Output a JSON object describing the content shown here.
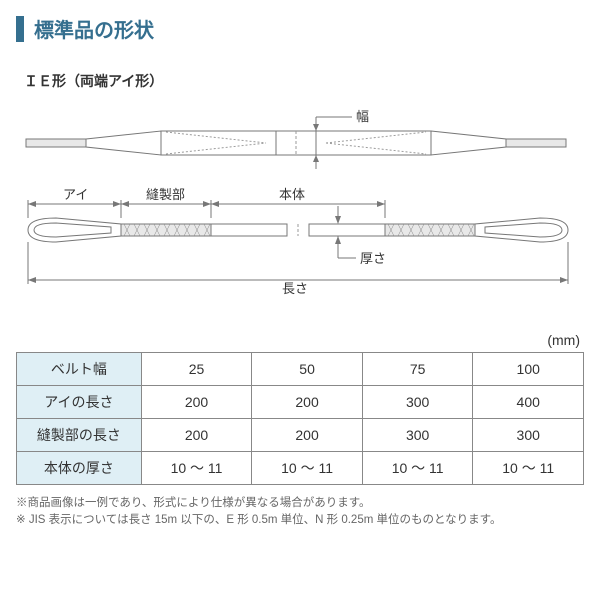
{
  "title": "標準品の形状",
  "subtitle": "ＩＥ形（両端アイ形）",
  "unit_label": "(mm)",
  "colors": {
    "accent": "#356f8f",
    "table_header_bg": "#dfeff5",
    "table_border": "#888888",
    "diagram_stroke": "#777777",
    "diagram_shade": "#e8e8e8",
    "text_dark": "#333333",
    "note_text": "#666666"
  },
  "diagram": {
    "labels": {
      "width": "幅",
      "eye": "アイ",
      "sewn": "縫製部",
      "body": "本体",
      "thickness": "厚さ",
      "length": "長さ"
    }
  },
  "table": {
    "rows": [
      {
        "header": "ベルト幅",
        "cells": [
          "25",
          "50",
          "75",
          "100"
        ]
      },
      {
        "header": "アイの長さ",
        "cells": [
          "200",
          "200",
          "300",
          "400"
        ]
      },
      {
        "header": "縫製部の長さ",
        "cells": [
          "200",
          "200",
          "300",
          "300"
        ]
      },
      {
        "header": "本体の厚さ",
        "cells": [
          "10 ～ 11",
          "10 ～ 11",
          "10 ～ 11",
          "10 ～ 11"
        ]
      }
    ]
  },
  "notes": [
    "※商品画像は一例であり、形式により仕様が異なる場合があります。",
    "※ JIS 表示については長さ 15m 以下の、E 形 0.5m 単位、N 形 0.25m 単位のものとなります。"
  ]
}
